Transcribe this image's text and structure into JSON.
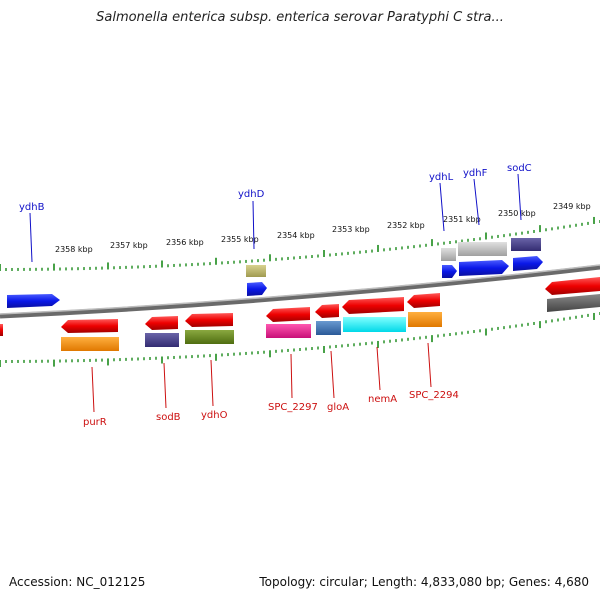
{
  "title": "Salmonella enterica subsp. enterica serovar Paratyphi C stra...",
  "footer": {
    "accession": "Accession: NC_012125",
    "summary": "Topology: circular; Length: 4,833,080 bp; Genes: 4,680"
  },
  "scale_labels": [
    "2358 kbp",
    "2357 kbp",
    "2356 kbp",
    "2355 kbp",
    "2354 kbp",
    "2353 kbp",
    "2352 kbp",
    "2351 kbp",
    "2350 kbp",
    "2349 kbp"
  ],
  "top_genes": [
    "ydhB",
    "ydhD",
    "ydhL",
    "ydhF",
    "sodC"
  ],
  "bottom_genes": [
    "purR",
    "sodB",
    "ydhO",
    "SPC_2297",
    "gloA",
    "nemA",
    "SPC_2294"
  ],
  "colors": {
    "forward_strand": "#0a14e6",
    "reverse_strand": "#e60a0a",
    "backbone": "#808080",
    "ticks": "#1a8a1a",
    "label_top": "#1010c8",
    "label_bottom": "#cc1010"
  }
}
